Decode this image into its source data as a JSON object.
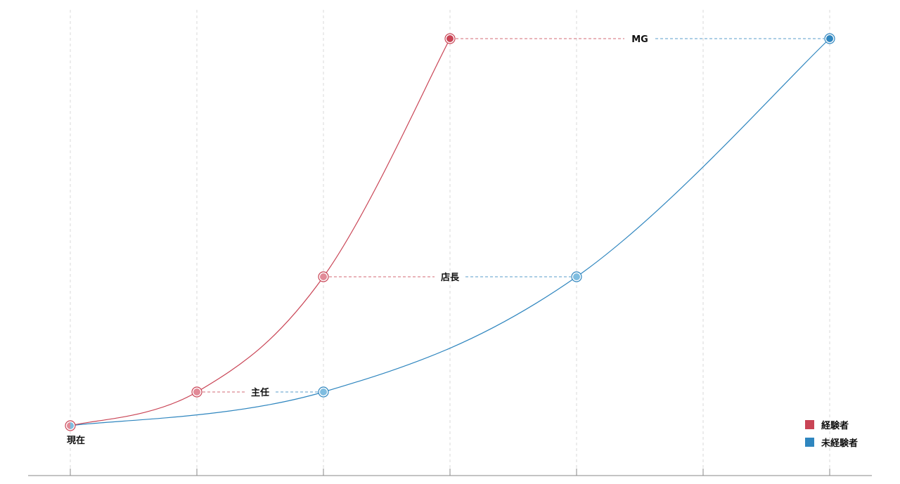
{
  "colors": {
    "experienced": "#c94455",
    "experienced_light": "#e18a97",
    "inexperienced": "#2f86bf",
    "inexperienced_light": "#7fbde0",
    "grid": "#d9d9d9",
    "axis": "#888888"
  },
  "chart_data": {
    "type": "line",
    "x": [
      0,
      1,
      2,
      3,
      4,
      5,
      6
    ],
    "xlim": [
      0,
      6
    ],
    "y_levels": [
      "現在",
      "主任",
      "店長",
      "MG"
    ],
    "y_values": [
      0,
      1,
      4,
      11
    ],
    "grid": true,
    "legend_position": "bottom-right",
    "series": [
      {
        "name": "経験者",
        "key": "experienced",
        "points": [
          {
            "x": 0,
            "y": 0
          },
          {
            "x": 1,
            "y": 1
          },
          {
            "x": 2,
            "y": 4
          },
          {
            "x": 3,
            "y": 11
          }
        ]
      },
      {
        "name": "未経験者",
        "key": "inexperienced",
        "points": [
          {
            "x": 0,
            "y": 0
          },
          {
            "x": 2,
            "y": 1
          },
          {
            "x": 4,
            "y": 4
          },
          {
            "x": 6,
            "y": 11
          }
        ]
      }
    ],
    "level_labels": [
      {
        "text": "現在",
        "y": 0
      },
      {
        "text": "主任",
        "y": 1
      },
      {
        "text": "店長",
        "y": 4
      },
      {
        "text": "MG",
        "y": 11
      }
    ]
  },
  "legend": [
    {
      "label": "経験者",
      "key": "experienced"
    },
    {
      "label": "未経験者",
      "key": "inexperienced"
    }
  ]
}
